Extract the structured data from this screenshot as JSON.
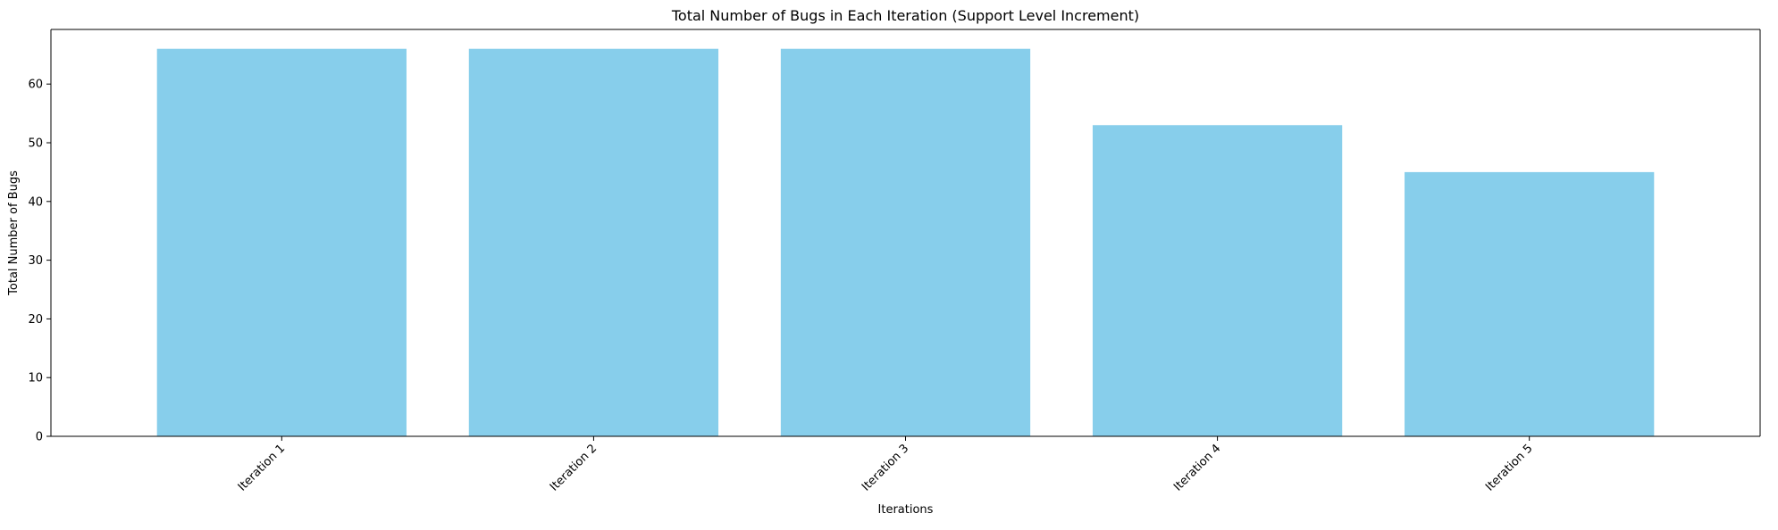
{
  "chart_data": {
    "type": "bar",
    "title": "Total Number of Bugs in Each Iteration (Support Level Increment)",
    "xlabel": "Iterations",
    "ylabel": "Total Number of Bugs",
    "categories": [
      "Iteration 1",
      "Iteration 2",
      "Iteration 3",
      "Iteration 4",
      "Iteration 5"
    ],
    "values": [
      66,
      66,
      66,
      53,
      45
    ],
    "ylim": [
      0,
      69.3
    ],
    "yticks": [
      0,
      10,
      20,
      30,
      40,
      50,
      60
    ],
    "grid": false,
    "legend": "none",
    "bar_color": "#87CEEB",
    "x_tick_rotation_deg": 45
  }
}
